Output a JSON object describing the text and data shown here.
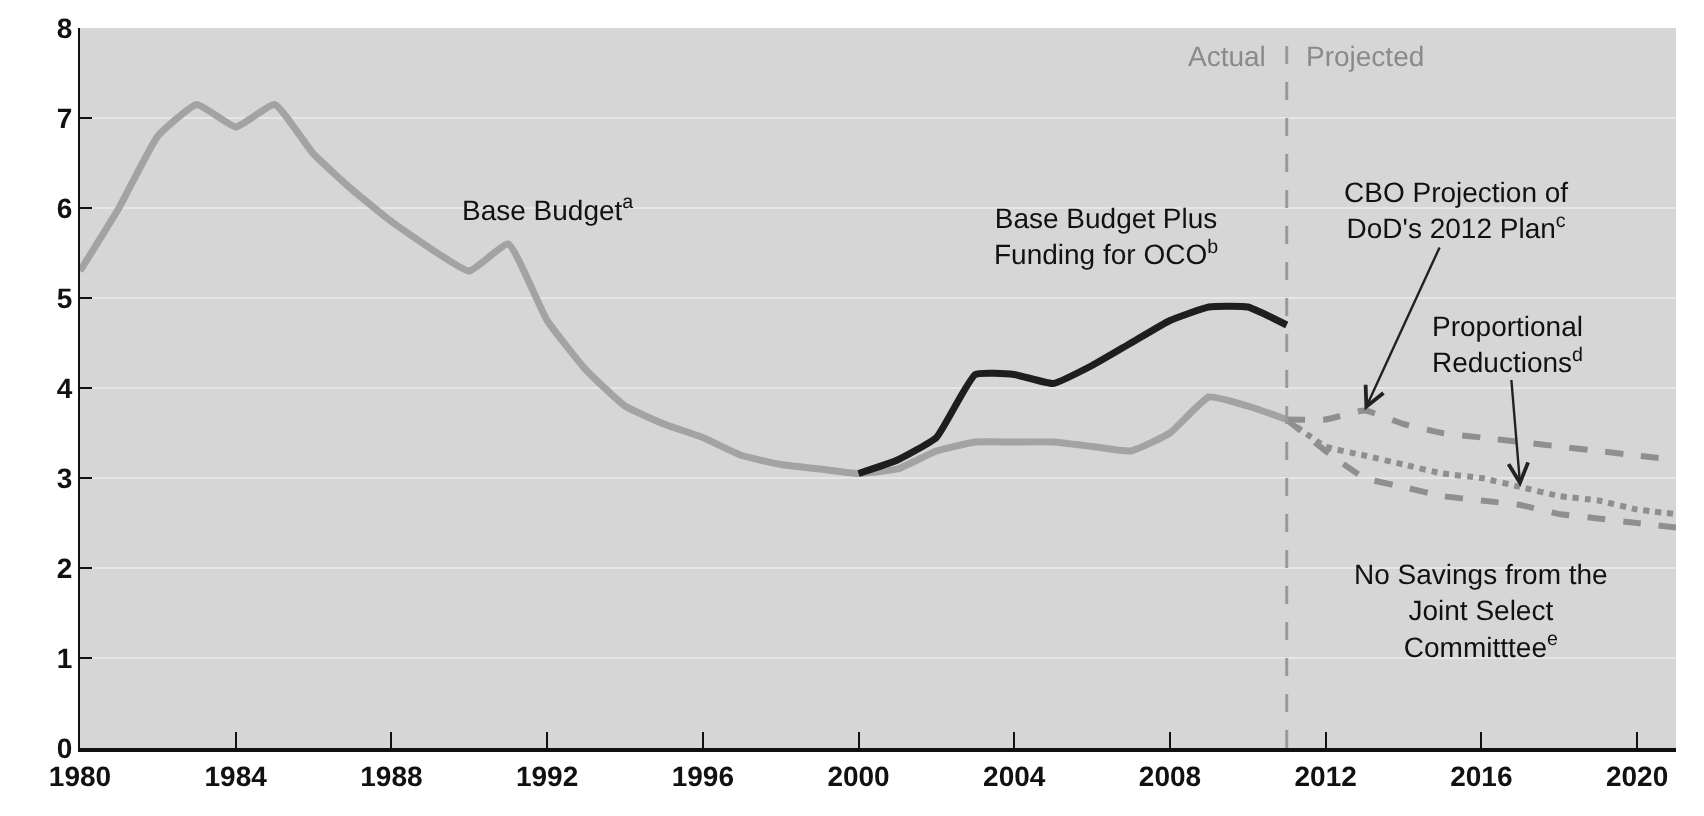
{
  "chart_data": {
    "type": "line",
    "xlim": [
      1980,
      2021
    ],
    "xticks": [
      1980,
      1984,
      1988,
      1992,
      1996,
      2000,
      2004,
      2008,
      2012,
      2016,
      2020
    ],
    "ylim": [
      0,
      8
    ],
    "yticks": [
      0,
      1,
      2,
      3,
      4,
      5,
      6,
      7,
      8
    ],
    "grid": "y",
    "legend": false,
    "marker": "none",
    "series": [
      {
        "name": "Base Budget$^{a}$",
        "color": "#a3a3a3",
        "line_style": "solid",
        "x": [
          1980,
          1981,
          1982,
          1983,
          1984,
          1985,
          1986,
          1987,
          1988,
          1989,
          1990,
          1991,
          1992,
          1993,
          1994,
          1995,
          1996,
          1997,
          1998,
          1999,
          2000,
          2001,
          2002,
          2003,
          2004,
          2005,
          2006,
          2007,
          2008,
          2009,
          2010,
          2011
        ],
        "values": [
          5.3,
          6.0,
          6.8,
          7.15,
          6.9,
          7.15,
          6.6,
          6.2,
          5.85,
          5.55,
          5.3,
          5.6,
          4.75,
          4.2,
          3.8,
          3.6,
          3.45,
          3.25,
          3.15,
          3.1,
          3.05,
          3.1,
          3.3,
          3.4,
          3.4,
          3.4,
          3.35,
          3.3,
          3.5,
          3.9,
          3.8,
          3.65
        ]
      },
      {
        "name": "Base Budget Plus Funding for OCO$^{b}$",
        "color": "#1e1e1e",
        "line_style": "solid",
        "x": [
          2000,
          2001,
          2002,
          2003,
          2004,
          2005,
          2006,
          2007,
          2008,
          2009,
          2010,
          2011
        ],
        "values": [
          3.05,
          3.2,
          3.45,
          4.15,
          4.15,
          4.05,
          4.25,
          4.5,
          4.75,
          4.9,
          4.9,
          4.7
        ]
      },
      {
        "name": "CBO Projection of DoD's 2012 Plan$^{c}$",
        "color": "#8f8f8f",
        "line_style": "dashed",
        "x": [
          2011,
          2012,
          2013,
          2014,
          2015,
          2016,
          2017,
          2018,
          2019,
          2020,
          2021
        ],
        "values": [
          3.65,
          3.65,
          3.75,
          3.6,
          3.5,
          3.45,
          3.4,
          3.35,
          3.3,
          3.25,
          3.2
        ]
      },
      {
        "name": "Proportional Reductions$^{d}$",
        "color": "#8f8f8f",
        "line_style": "dotted",
        "x": [
          2011,
          2012,
          2013,
          2014,
          2015,
          2016,
          2017,
          2018,
          2019,
          2020,
          2021
        ],
        "values": [
          3.65,
          3.35,
          3.25,
          3.15,
          3.05,
          3.0,
          2.9,
          2.8,
          2.75,
          2.65,
          2.6
        ]
      },
      {
        "name": "No Savings from the Joint Select Committtee$^{e}$",
        "color": "#8f8f8f",
        "line_style": "dashed",
        "x": [
          2011,
          2012,
          2013,
          2014,
          2015,
          2016,
          2017,
          2018,
          2019,
          2020,
          2021
        ],
        "values": [
          3.65,
          3.3,
          3.0,
          2.9,
          2.8,
          2.75,
          2.7,
          2.6,
          2.55,
          2.5,
          2.45
        ]
      }
    ],
    "ref_lines": [
      {
        "axis": "x",
        "value": 2011,
        "color": "#9a9a9a",
        "line_style": "dashed"
      }
    ],
    "annotations": [
      "Actual",
      "Projected"
    ]
  }
}
